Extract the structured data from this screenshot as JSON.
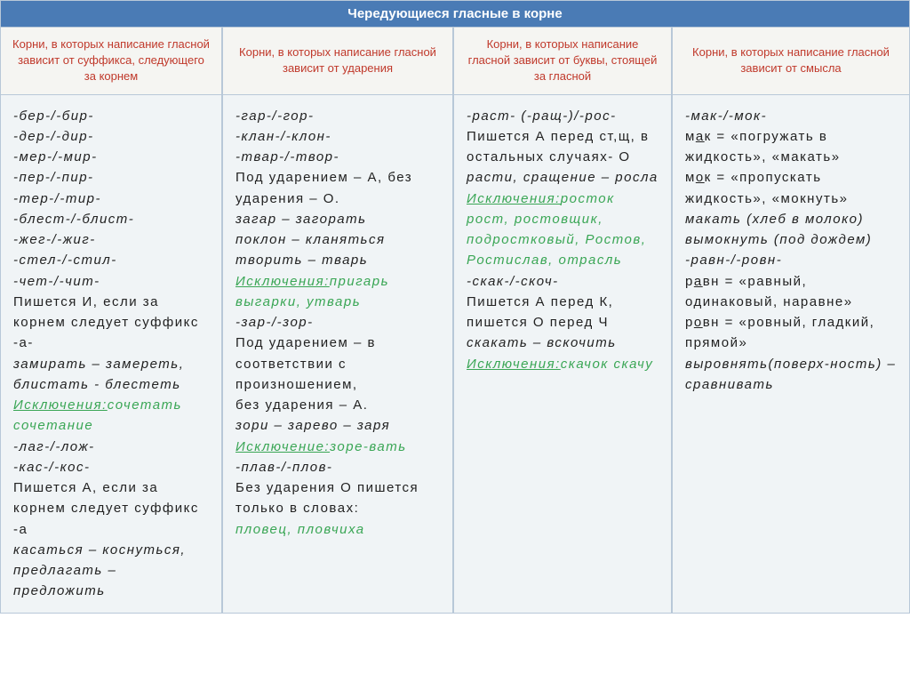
{
  "title": "Чередующиеся гласные в корне",
  "colors": {
    "header_bg": "#4a7bb5",
    "header_text": "#ffffff",
    "col_header_bg": "#f5f5f2",
    "col_header_text": "#c0392b",
    "cell_bg": "#f0f4f6",
    "border": "#b8c8d8",
    "exception": "#3aa655",
    "text": "#222222"
  },
  "columns": [
    {
      "header": "Корни, в которых написание гласной зависит от суффикса, следующего за корнем",
      "lines": [
        {
          "t": "-бер-/-бир-",
          "s": "ital"
        },
        {
          "t": "-дер-/-дир-",
          "s": "ital"
        },
        {
          "t": "-мер-/-мир-",
          "s": "ital"
        },
        {
          "t": "-пер-/-пир-",
          "s": "ital"
        },
        {
          "t": "-тер-/-тир-",
          "s": "ital"
        },
        {
          "t": "-блест-/-блист-",
          "s": "ital"
        },
        {
          "t": "-жег-/-жиг-",
          "s": "ital"
        },
        {
          "t": "-стел-/-стил-",
          "s": "ital"
        },
        {
          "t": "-чет-/-чит-",
          "s": "ital"
        },
        {
          "t": "Пишется И, если за корнем следует суффикс -а-",
          "s": ""
        },
        {
          "t": "замирать – замереть,",
          "s": "ital"
        },
        {
          "t": "блистать - блестеть",
          "s": "ital"
        },
        {
          "t": "Исключения:",
          "s": "excl-u",
          "inline": "сочетать сочетание",
          "inline_s": "excl"
        },
        {
          "t": " -лаг-/-лож-",
          "s": "ital"
        },
        {
          "t": "-кас-/-кос-",
          "s": "ital"
        },
        {
          "t": "Пишется А, если за корнем следует суффикс -а",
          "s": ""
        },
        {
          "t": "касаться – коснуться, предлагать – предложить",
          "s": "ital"
        }
      ]
    },
    {
      "header": "Корни, в которых написание гласной зависит от ударения",
      "lines": [
        {
          "t": "-гар-/-гор-",
          "s": "ital"
        },
        {
          "t": "-клан-/-клон-",
          "s": "ital"
        },
        {
          "t": "-твар-/-твор-",
          "s": "ital"
        },
        {
          "t": "Под ударением – А, без ударения – О.",
          "s": ""
        },
        {
          "t": "загар – загорать",
          "s": "ital"
        },
        {
          "t": "поклон – кланяться",
          "s": "ital"
        },
        {
          "t": "творить – тварь",
          "s": "ital"
        },
        {
          "t": "Исключения:",
          "s": "excl-u",
          "inline": "пригарь выгарки, утварь",
          "inline_s": "excl"
        },
        {
          "t": " -зар-/-зор-",
          "s": "ital"
        },
        {
          "t": "Под ударением – в соответствии с произношением,",
          "s": ""
        },
        {
          "t": "без ударения – А.",
          "s": ""
        },
        {
          "t": "зори – зарево – заря",
          "s": "ital"
        },
        {
          "t": "Исключение:",
          "s": "excl-u",
          "inline": "зоре-вать",
          "inline_s": "excl"
        },
        {
          "t": " -плав-/-плов-",
          "s": "ital"
        },
        {
          "t": "Без ударения О пишется только в словах:",
          "s": ""
        },
        {
          "t": "пловец, пловчиха",
          "s": "excl"
        }
      ]
    },
    {
      "header": "Корни, в которых написание гласной зависит от буквы, стоящей за гласной",
      "lines": [
        {
          "t": "-раст- (-ращ-)/-рос-",
          "s": "ital"
        },
        {
          "t": "Пишется А перед ст,щ, в остальных случаях- О",
          "s": ""
        },
        {
          "t": "расти, сращение – росла",
          "s": "ital"
        },
        {
          "t": "Исключения:",
          "s": "excl-u",
          "inline": "росток рост, ростовщик, подростковый, Ростов, Ростислав, отрасль",
          "inline_s": "excl"
        },
        {
          "t": " -скак-/-скоч-",
          "s": "ital"
        },
        {
          "t": "Пишется А перед К, пишется О перед Ч",
          "s": ""
        },
        {
          "t": "скакать – вскочить",
          "s": "ital"
        },
        {
          "t": "Исключения:",
          "s": "excl-u",
          "inline": "скачок скачу",
          "inline_s": "excl"
        }
      ]
    },
    {
      "header": "Корни, в которых написание гласной зависит от смысла",
      "lines": [
        {
          "t": "-мак-/-мок-",
          "s": "ital"
        },
        {
          "t": "мак = «погружать в жидкость», «макать»",
          "s": "",
          "u1": "а"
        },
        {
          "t": "мок = «пропускать жидкость», «мокнуть»",
          "s": "",
          "u1": "о"
        },
        {
          "t": "макать (хлеб в молоко)",
          "s": "ital"
        },
        {
          "t": "вымокнуть (под дождем)",
          "s": "ital"
        },
        {
          "t": " -равн-/-ровн-",
          "s": "ital"
        },
        {
          "t": "равн = «равный, одинаковый, наравне»",
          "s": "",
          "u1": "а"
        },
        {
          "t": "ровн = «ровный, гладкий, прямой»",
          "s": "",
          "u1": "о"
        },
        {
          "t": "выровнять(поверх-ность) –сравнивать",
          "s": "ital"
        }
      ]
    }
  ]
}
